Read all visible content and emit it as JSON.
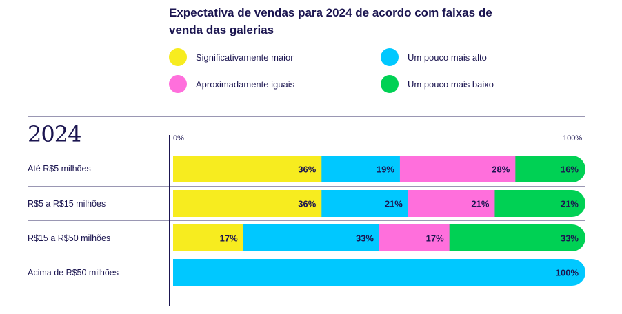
{
  "title": "Expectativa de vendas para 2024 de acordo com faixas de venda das galerias",
  "year_label": "2024",
  "colors": {
    "significativamente_maior": "#f7ec1f",
    "um_pouco_mais_alto": "#00c8ff",
    "aproximadamente_iguais": "#ff6fdc",
    "um_pouco_mais_baixo": "#00d154",
    "text": "#1b1550"
  },
  "legend": [
    {
      "label": "Significativamente maior",
      "color": "#f7ec1f"
    },
    {
      "label": "Aproximadamente iguais",
      "color": "#ff6fdc"
    },
    {
      "label": "Um pouco mais alto",
      "color": "#00c8ff"
    },
    {
      "label": "Um pouco mais baixo",
      "color": "#00d154"
    }
  ],
  "chart_data": {
    "type": "bar",
    "orientation": "horizontal",
    "stacked": true,
    "title": "Expectativa de vendas para 2024 de acordo com faixas de venda das galerias",
    "xlim": [
      0,
      100
    ],
    "tick_labels": {
      "start": "0%",
      "end": "100%"
    },
    "categories": [
      "Até R$5 milhões",
      "R$5 a R$15 milhões",
      "R$15 a R$50 milhões",
      "Acima de R$50 milhões"
    ],
    "segments": [
      [
        {
          "series": "Significativamente maior",
          "value": 36,
          "label": "36%",
          "color": "#f7ec1f"
        },
        {
          "series": "Um pouco mais alto",
          "value": 19,
          "label": "19%",
          "color": "#00c8ff"
        },
        {
          "series": "Aproximadamente iguais",
          "value": 28,
          "label": "28%",
          "color": "#ff6fdc"
        },
        {
          "series": "Um pouco mais baixo",
          "value": 16,
          "label": "16%",
          "color": "#00d154"
        }
      ],
      [
        {
          "series": "Significativamente maior",
          "value": 36,
          "label": "36%",
          "color": "#f7ec1f"
        },
        {
          "series": "Um pouco mais alto",
          "value": 21,
          "label": "21%",
          "color": "#00c8ff"
        },
        {
          "series": "Aproximadamente iguais",
          "value": 21,
          "label": "21%",
          "color": "#ff6fdc"
        },
        {
          "series": "Um pouco mais baixo",
          "value": 21,
          "label": "21%",
          "color": "#00d154"
        }
      ],
      [
        {
          "series": "Significativamente maior",
          "value": 17,
          "label": "17%",
          "color": "#f7ec1f"
        },
        {
          "series": "Um pouco mais alto",
          "value": 33,
          "label": "33%",
          "color": "#00c8ff"
        },
        {
          "series": "Aproximadamente iguais",
          "value": 17,
          "label": "17%",
          "color": "#ff6fdc"
        },
        {
          "series": "Um pouco mais baixo",
          "value": 33,
          "label": "33%",
          "color": "#00d154"
        }
      ],
      [
        {
          "series": "Um pouco mais alto",
          "value": 100,
          "label": "100%",
          "color": "#00c8ff"
        }
      ]
    ]
  }
}
